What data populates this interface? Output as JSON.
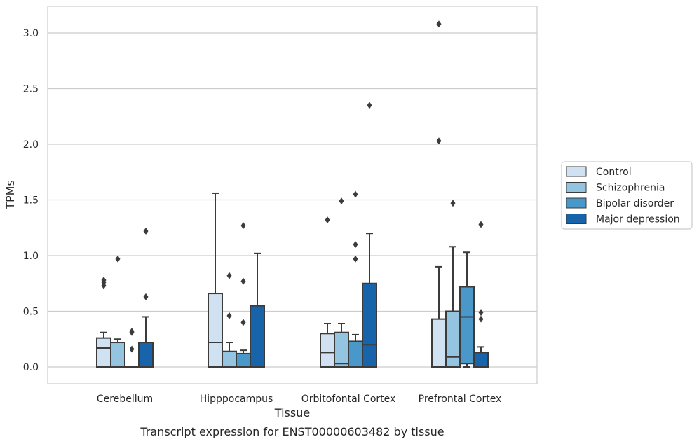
{
  "chart_data": {
    "type": "box",
    "title": "Transcript expression for ENST00000603482 by tissue",
    "xlabel": "Tissue",
    "ylabel": "TPMs",
    "ylim": [
      -0.15,
      3.24
    ],
    "yticks": [
      0.0,
      0.5,
      1.0,
      1.5,
      2.0,
      2.5,
      3.0
    ],
    "ytick_labels": [
      "0.0",
      "0.5",
      "1.0",
      "1.5",
      "2.0",
      "2.5",
      "3.0"
    ],
    "grid": "horizontal",
    "legend_position": "right",
    "categories": [
      "Cerebellum",
      "Hipppocampus",
      "Orbitofontal Cortex",
      "Prefrontal Cortex"
    ],
    "series": [
      {
        "name": "Control",
        "color": "#d0e1f2",
        "boxes": [
          {
            "whisker_low": 0.0,
            "q1": 0.0,
            "median": 0.17,
            "q3": 0.26,
            "whisker_high": 0.31,
            "outliers": [
              0.73,
              0.76,
              0.78
            ]
          },
          {
            "whisker_low": 0.0,
            "q1": 0.0,
            "median": 0.22,
            "q3": 0.66,
            "whisker_high": 1.56,
            "outliers": []
          },
          {
            "whisker_low": 0.0,
            "q1": 0.0,
            "median": 0.13,
            "q3": 0.3,
            "whisker_high": 0.39,
            "outliers": [
              1.32
            ]
          },
          {
            "whisker_low": 0.0,
            "q1": 0.0,
            "median": 0.0,
            "q3": 0.43,
            "whisker_high": 0.9,
            "outliers": [
              2.03,
              3.08
            ]
          }
        ]
      },
      {
        "name": "Schizophrenia",
        "color": "#94c4df",
        "boxes": [
          {
            "whisker_low": 0.0,
            "q1": 0.0,
            "median": 0.0,
            "q3": 0.22,
            "whisker_high": 0.25,
            "outliers": [
              0.97
            ]
          },
          {
            "whisker_low": 0.0,
            "q1": 0.0,
            "median": 0.0,
            "q3": 0.14,
            "whisker_high": 0.22,
            "outliers": [
              0.46,
              0.82
            ]
          },
          {
            "whisker_low": 0.0,
            "q1": 0.0,
            "median": 0.03,
            "q3": 0.31,
            "whisker_high": 0.39,
            "outliers": [
              1.49
            ]
          },
          {
            "whisker_low": 0.0,
            "q1": 0.0,
            "median": 0.09,
            "q3": 0.5,
            "whisker_high": 1.08,
            "outliers": [
              1.47
            ]
          }
        ]
      },
      {
        "name": "Bipolar disorder",
        "color": "#4a98c9",
        "boxes": [
          {
            "whisker_low": 0.0,
            "q1": 0.0,
            "median": 0.0,
            "q3": 0.0,
            "whisker_high": 0.0,
            "outliers": [
              0.16,
              0.31,
              0.32
            ]
          },
          {
            "whisker_low": 0.0,
            "q1": 0.0,
            "median": 0.0,
            "q3": 0.12,
            "whisker_high": 0.15,
            "outliers": [
              0.4,
              0.77,
              1.27
            ]
          },
          {
            "whisker_low": 0.0,
            "q1": 0.0,
            "median": 0.0,
            "q3": 0.23,
            "whisker_high": 0.29,
            "outliers": [
              0.97,
              1.1,
              1.55
            ]
          },
          {
            "whisker_low": 0.0,
            "q1": 0.03,
            "median": 0.45,
            "q3": 0.72,
            "whisker_high": 1.03,
            "outliers": []
          }
        ]
      },
      {
        "name": "Major depression",
        "color": "#1764ab",
        "boxes": [
          {
            "whisker_low": 0.0,
            "q1": 0.0,
            "median": 0.0,
            "q3": 0.22,
            "whisker_high": 0.45,
            "outliers": [
              0.63,
              1.22
            ]
          },
          {
            "whisker_low": 0.0,
            "q1": 0.0,
            "median": 0.0,
            "q3": 0.55,
            "whisker_high": 1.02,
            "outliers": []
          },
          {
            "whisker_low": 0.0,
            "q1": 0.0,
            "median": 0.2,
            "q3": 0.75,
            "whisker_high": 1.2,
            "outliers": [
              2.35
            ]
          },
          {
            "whisker_low": 0.0,
            "q1": 0.0,
            "median": 0.0,
            "q3": 0.13,
            "whisker_high": 0.18,
            "outliers": [
              0.43,
              0.49,
              1.28
            ]
          }
        ]
      }
    ]
  }
}
